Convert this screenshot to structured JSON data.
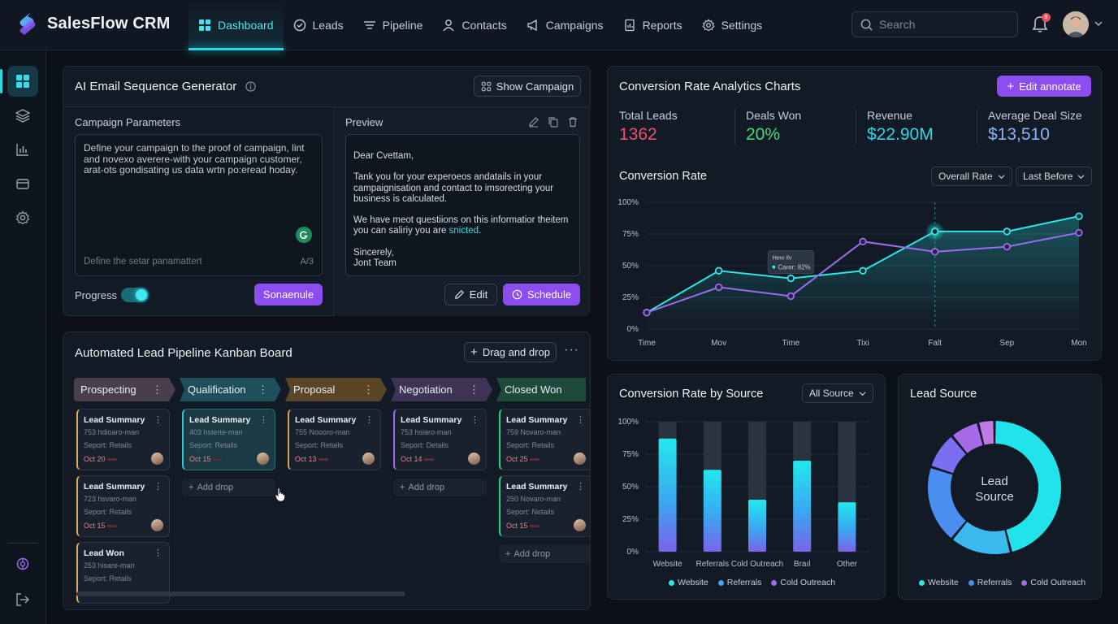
{
  "app": {
    "name": "SalesFlow CRM"
  },
  "nav": {
    "items": [
      {
        "label": "Dashboard",
        "icon": "dashboard-icon",
        "active": true
      },
      {
        "label": "Leads",
        "icon": "check-circle-icon"
      },
      {
        "label": "Pipeline",
        "icon": "list-icon"
      },
      {
        "label": "Contacts",
        "icon": "user-icon"
      },
      {
        "label": "Campaigns",
        "icon": "megaphone-icon"
      },
      {
        "label": "Reports",
        "icon": "report-icon"
      },
      {
        "label": "Settings",
        "icon": "gear-icon"
      }
    ]
  },
  "header": {
    "search_placeholder": "Search",
    "notification_count": "8"
  },
  "sidebar": {
    "icons": [
      "grid-icon",
      "layers-icon",
      "bar-chart-icon",
      "folder-icon",
      "settings-icon",
      "brain-icon",
      "logout-icon"
    ]
  },
  "email_gen": {
    "title": "AI Email Sequence Generator",
    "show_button": "Show Campaign",
    "params_label": "Campaign Parameters",
    "params_text": "Define your campaign to the proof of campaign, lint and novexo averere-with your campaign customer, arat-ots gondisating us data wrtn po:eread hoday.",
    "params_placeholder": "Define the setar panamattert",
    "params_counter": "A/3",
    "progress_label": "Progress",
    "progress_on": true,
    "secondary_button": "Sonaenule",
    "preview_label": "Preview",
    "preview_greeting": "Dear Cvettam,",
    "preview_p1": "Tank you for your experoeos andatails in your campaignisation and contact to imsorecting your business is calculated.",
    "preview_p2_a": "We have meot questiions on this informatior theitem you can saliriy you are ",
    "preview_p2_link": "snicted",
    "preview_p2_b": ".",
    "preview_sign1": "Sincerely,",
    "preview_sign2": "Jont Team",
    "edit_button": "Edit",
    "schedule_button": "Schedule"
  },
  "kanban": {
    "title": "Automated Lead Pipeline Kanban Board",
    "drag_button": "Drag and drop",
    "add_label": "Add drop",
    "columns": [
      {
        "name": "Prospecting",
        "color": "#4a3e4e",
        "accent": "#e3a85a",
        "cards": [
          {
            "title": "Lead Summary",
            "l1": "753 hdioaro-man",
            "l2": "Seport: Retails",
            "date": "Oct 20"
          },
          {
            "title": "Lead Summary",
            "l1": "723 hsvaro-man",
            "l2": "Seport: Retails",
            "date": "Oct 15"
          },
          {
            "title": "Lead Won",
            "l1": "253 hisare-man",
            "l2": "Seport: Retails",
            "date": ""
          }
        ]
      },
      {
        "name": "Qualification",
        "color": "#1f4f5c",
        "accent": "#27c8d8",
        "cards": [
          {
            "title": "Lead Summary",
            "l1": "403 hsterte-man",
            "l2": "Seport: Retails",
            "date": "Oct 15"
          }
        ]
      },
      {
        "name": "Proposal",
        "color": "#5a4526",
        "accent": "#e2a24c",
        "cards": [
          {
            "title": "Lead Summary",
            "l1": "755 Noooro-man",
            "l2": "Seport: Retails",
            "date": "Oct 13"
          }
        ]
      },
      {
        "name": "Negotiation",
        "color": "#3e3556",
        "accent": "#9e6cf0",
        "cards": [
          {
            "title": "Lead Summary",
            "l1": "753 hsiaro-man",
            "l2": "Seport: Details",
            "date": "Oct 14"
          }
        ]
      },
      {
        "name": "Closed Won",
        "color": "#1d4a3a",
        "accent": "#2ed38a",
        "cards": [
          {
            "title": "Lead Summary",
            "l1": "759 Novaro-man",
            "l2": "Seport: Retails",
            "date": "Oct 25"
          },
          {
            "title": "Lead Summary",
            "l1": "250 Novaro-man",
            "l2": "Seport: Netails",
            "date": "Oct 15"
          }
        ]
      }
    ]
  },
  "analytics": {
    "title": "Conversion Rate Analytics Charts",
    "annotate_button": "Edit annotate",
    "stats": [
      {
        "label": "Total Leads",
        "value": "1362",
        "color": "#f0506a"
      },
      {
        "label": "Deals Won",
        "value": "20%",
        "color": "#3bde7a"
      },
      {
        "label": "Revenue",
        "value": "$22.90M",
        "color": "#2ed6e6"
      },
      {
        "label": "Average Deal Size",
        "value": "$13,510",
        "color": "#8ab3f5"
      }
    ],
    "line_title": "Conversion Rate",
    "dd1": "Overall Rate",
    "dd2": "Last Before",
    "tooltip_l1": "Hew ilv",
    "tooltip_l2": "Carer: 82%"
  },
  "source_chart": {
    "title": "Conversion Rate by Source",
    "dropdown": "All Source"
  },
  "lead_source": {
    "title": "Lead Source",
    "center_l1": "Lead",
    "center_l2": "Source"
  },
  "chart_data": [
    {
      "type": "line",
      "title": "Conversion Rate",
      "x": [
        "Time",
        "Mov",
        "Time",
        "Tixi",
        "Falt",
        "Sep",
        "Mon"
      ],
      "ylim": [
        0,
        100
      ],
      "yticks": [
        "0%",
        "25%",
        "50%",
        "75%",
        "100%"
      ],
      "series": [
        {
          "values": [
            13,
            46,
            40,
            46,
            77,
            77,
            89
          ],
          "color": "#2de6e6"
        },
        {
          "values": [
            13,
            33,
            26,
            69,
            61,
            65,
            76
          ],
          "color": "#9a6cf0"
        }
      ]
    },
    {
      "type": "bar",
      "title": "Conversion Rate by Source",
      "categories": [
        "Website",
        "Referrals",
        "Cold Outreach",
        "Braıl",
        "Other"
      ],
      "values": [
        87,
        63,
        40,
        70,
        38
      ],
      "ylim": [
        0,
        100
      ],
      "yticks": [
        "0%",
        "25%",
        "50%",
        "75%",
        "100%"
      ],
      "legend": [
        "Website",
        "Referrals",
        "Cold Outreach"
      ],
      "legend_colors": [
        "#2de6e6",
        "#4aa3f0",
        "#9a6cf0"
      ]
    },
    {
      "type": "pie",
      "title": "Lead Source",
      "slices": [
        {
          "value": 46,
          "color": "#22e3ea"
        },
        {
          "value": 15,
          "color": "#3cb9ee"
        },
        {
          "value": 19,
          "color": "#4a8ff0"
        },
        {
          "value": 9,
          "color": "#7b6ff0"
        },
        {
          "value": 7,
          "color": "#a66ae8"
        },
        {
          "value": 4,
          "color": "#c07ae6"
        }
      ],
      "legend": [
        "Website",
        "Referrals",
        "Cold Outreach"
      ],
      "legend_colors": [
        "#2de6e6",
        "#4a8ff0",
        "#a66ae8"
      ]
    }
  ]
}
